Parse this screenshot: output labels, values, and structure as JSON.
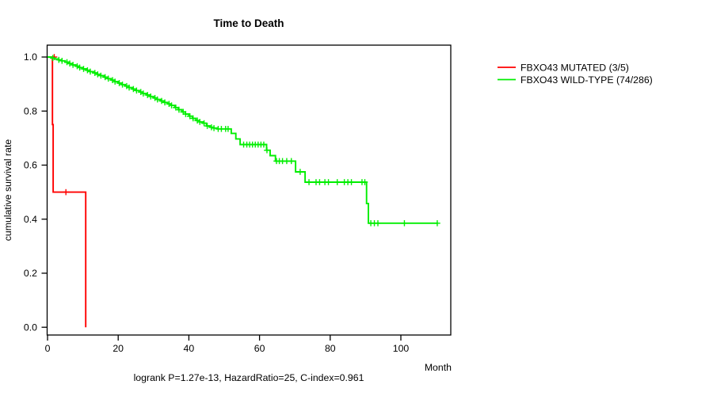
{
  "chart_data": {
    "type": "line",
    "subtype": "kaplan-meier-step",
    "title": "Time to Death",
    "xlabel": "Month",
    "ylabel": "cumulative survival rate",
    "caption": "logrank P=1.27e-13, HazardRatio=25, C-index=0.961",
    "xlim": [
      0,
      114
    ],
    "ylim": [
      0,
      1
    ],
    "grid": false,
    "legend_position": "right-outside",
    "x_ticks": {
      "values": [
        0,
        20,
        40,
        60,
        80,
        100
      ],
      "labels": [
        "0",
        "20",
        "40",
        "60",
        "80",
        "100"
      ]
    },
    "y_ticks": {
      "values": [
        0,
        0.2,
        0.4,
        0.6,
        0.8,
        1.0
      ],
      "labels": [
        "0.0",
        "0.2",
        "0.4",
        "0.6",
        "0.8",
        "1.0"
      ]
    },
    "axis_color": "#000000",
    "series": [
      {
        "name": "FBXO43 MUTATED (3/5)",
        "color": "#ff0000",
        "points": [
          [
            0,
            1.0
          ],
          [
            1.4,
            0.75
          ],
          [
            1.6,
            0.5
          ],
          [
            10.8,
            0.0
          ]
        ],
        "censors": [
          [
            1.9,
            1.0
          ],
          [
            5.2,
            0.5
          ]
        ]
      },
      {
        "name": "FBXO43 WILD-TYPE (74/286)",
        "color": "#00ee00",
        "points": [
          [
            0,
            1.0
          ],
          [
            1,
            0.9965
          ],
          [
            2,
            0.993
          ],
          [
            3,
            0.9895
          ],
          [
            4,
            0.986
          ],
          [
            5,
            0.981
          ],
          [
            6,
            0.976
          ],
          [
            7,
            0.971
          ],
          [
            8,
            0.966
          ],
          [
            9,
            0.961
          ],
          [
            10,
            0.956
          ],
          [
            11,
            0.951
          ],
          [
            12,
            0.946
          ],
          [
            13,
            0.941
          ],
          [
            14,
            0.936
          ],
          [
            15,
            0.931
          ],
          [
            16,
            0.9255
          ],
          [
            17,
            0.92
          ],
          [
            18,
            0.9145
          ],
          [
            19,
            0.909
          ],
          [
            20,
            0.9035
          ],
          [
            21,
            0.898
          ],
          [
            22,
            0.8925
          ],
          [
            23,
            0.887
          ],
          [
            24,
            0.8815
          ],
          [
            25,
            0.876
          ],
          [
            26,
            0.8705
          ],
          [
            27,
            0.865
          ],
          [
            28,
            0.8595
          ],
          [
            29,
            0.854
          ],
          [
            30,
            0.8485
          ],
          [
            31,
            0.843
          ],
          [
            32,
            0.8375
          ],
          [
            33,
            0.832
          ],
          [
            34,
            0.8265
          ],
          [
            35,
            0.821
          ],
          [
            36,
            0.813
          ],
          [
            37,
            0.805
          ],
          [
            38,
            0.797
          ],
          [
            39,
            0.789
          ],
          [
            40,
            0.781
          ],
          [
            41,
            0.773
          ],
          [
            42,
            0.765
          ],
          [
            43,
            0.76
          ],
          [
            44,
            0.755
          ],
          [
            45,
            0.745
          ],
          [
            46,
            0.74
          ],
          [
            47,
            0.737
          ],
          [
            48,
            0.734
          ],
          [
            52,
            0.7175
          ],
          [
            53.3,
            0.697
          ],
          [
            54.5,
            0.676
          ],
          [
            62,
            0.655
          ],
          [
            63,
            0.635
          ],
          [
            64.5,
            0.615
          ],
          [
            70.2,
            0.575
          ],
          [
            72.9,
            0.537
          ],
          [
            90.3,
            0.458
          ],
          [
            90.8,
            0.385
          ],
          [
            110.5,
            0.385
          ]
        ],
        "censors": [
          [
            1.5,
            0.9965
          ],
          [
            3.2,
            0.9895
          ],
          [
            4.1,
            0.986
          ],
          [
            5.5,
            0.981
          ],
          [
            6.3,
            0.976
          ],
          [
            7.2,
            0.971
          ],
          [
            8.4,
            0.966
          ],
          [
            9.1,
            0.961
          ],
          [
            10.2,
            0.956
          ],
          [
            11.3,
            0.951
          ],
          [
            12.1,
            0.946
          ],
          [
            13.4,
            0.941
          ],
          [
            14.2,
            0.936
          ],
          [
            15.1,
            0.931
          ],
          [
            16.3,
            0.9255
          ],
          [
            17.2,
            0.92
          ],
          [
            18.4,
            0.9145
          ],
          [
            19.1,
            0.909
          ],
          [
            20.3,
            0.9035
          ],
          [
            21.2,
            0.898
          ],
          [
            22.4,
            0.8925
          ],
          [
            23.1,
            0.887
          ],
          [
            24.3,
            0.8815
          ],
          [
            25.2,
            0.876
          ],
          [
            26.4,
            0.8705
          ],
          [
            27.1,
            0.865
          ],
          [
            28.3,
            0.8595
          ],
          [
            29.2,
            0.854
          ],
          [
            30.4,
            0.8485
          ],
          [
            31.1,
            0.843
          ],
          [
            32.3,
            0.8375
          ],
          [
            33.2,
            0.832
          ],
          [
            34.4,
            0.8265
          ],
          [
            35.1,
            0.821
          ],
          [
            36.3,
            0.813
          ],
          [
            37.2,
            0.805
          ],
          [
            38.4,
            0.797
          ],
          [
            39.1,
            0.789
          ],
          [
            40.3,
            0.781
          ],
          [
            41.2,
            0.773
          ],
          [
            42.4,
            0.765
          ],
          [
            43.1,
            0.76
          ],
          [
            44.3,
            0.755
          ],
          [
            45.2,
            0.745
          ],
          [
            46.4,
            0.74
          ],
          [
            47.1,
            0.737
          ],
          [
            48.3,
            0.734
          ],
          [
            49.2,
            0.734
          ],
          [
            50.4,
            0.734
          ],
          [
            51.1,
            0.734
          ],
          [
            55.5,
            0.676
          ],
          [
            56.4,
            0.676
          ],
          [
            57.2,
            0.676
          ],
          [
            58,
            0.676
          ],
          [
            58.8,
            0.676
          ],
          [
            59.6,
            0.676
          ],
          [
            60.4,
            0.676
          ],
          [
            61.2,
            0.676
          ],
          [
            62.1,
            0.655
          ],
          [
            64.8,
            0.615
          ],
          [
            65.6,
            0.615
          ],
          [
            66.5,
            0.615
          ],
          [
            67.7,
            0.615
          ],
          [
            69,
            0.615
          ],
          [
            71.5,
            0.575
          ],
          [
            74,
            0.537
          ],
          [
            76,
            0.537
          ],
          [
            77,
            0.537
          ],
          [
            78.5,
            0.537
          ],
          [
            79.5,
            0.537
          ],
          [
            82,
            0.537
          ],
          [
            84,
            0.537
          ],
          [
            85,
            0.537
          ],
          [
            86,
            0.537
          ],
          [
            89,
            0.537
          ],
          [
            89.8,
            0.537
          ],
          [
            91.5,
            0.385
          ],
          [
            92.5,
            0.385
          ],
          [
            93.5,
            0.385
          ],
          [
            101,
            0.385
          ],
          [
            110.3,
            0.385
          ]
        ]
      }
    ]
  }
}
